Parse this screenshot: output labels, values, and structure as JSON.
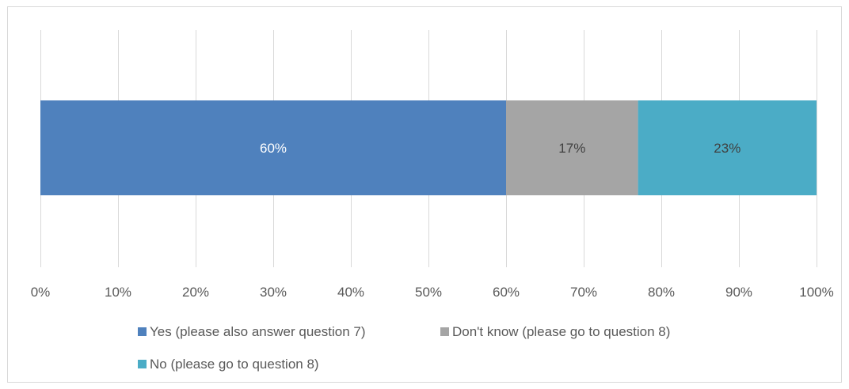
{
  "chart_data": {
    "type": "bar",
    "orientation": "horizontal",
    "stacked": true,
    "normalized_percent": true,
    "categories": [
      ""
    ],
    "series": [
      {
        "name": "Yes (please also answer question 7)",
        "values": [
          0.6
        ],
        "label": "60%",
        "color": "#4f81bd",
        "label_color": "#ffffff"
      },
      {
        "name": "Don't know (please go to question 8)",
        "values": [
          0.17
        ],
        "label": "17%",
        "color": "#a5a5a5",
        "label_color": "#404040"
      },
      {
        "name": "No (please go to question 8)",
        "values": [
          0.23
        ],
        "label": "23%",
        "color": "#4bacc6",
        "label_color": "#404040"
      }
    ],
    "x_ticks": [
      "0%",
      "10%",
      "20%",
      "30%",
      "40%",
      "50%",
      "60%",
      "70%",
      "80%",
      "90%",
      "100%"
    ],
    "xlim": [
      0,
      1
    ],
    "grid": true,
    "legend_position": "bottom",
    "title": "",
    "xlabel": "",
    "ylabel": ""
  }
}
